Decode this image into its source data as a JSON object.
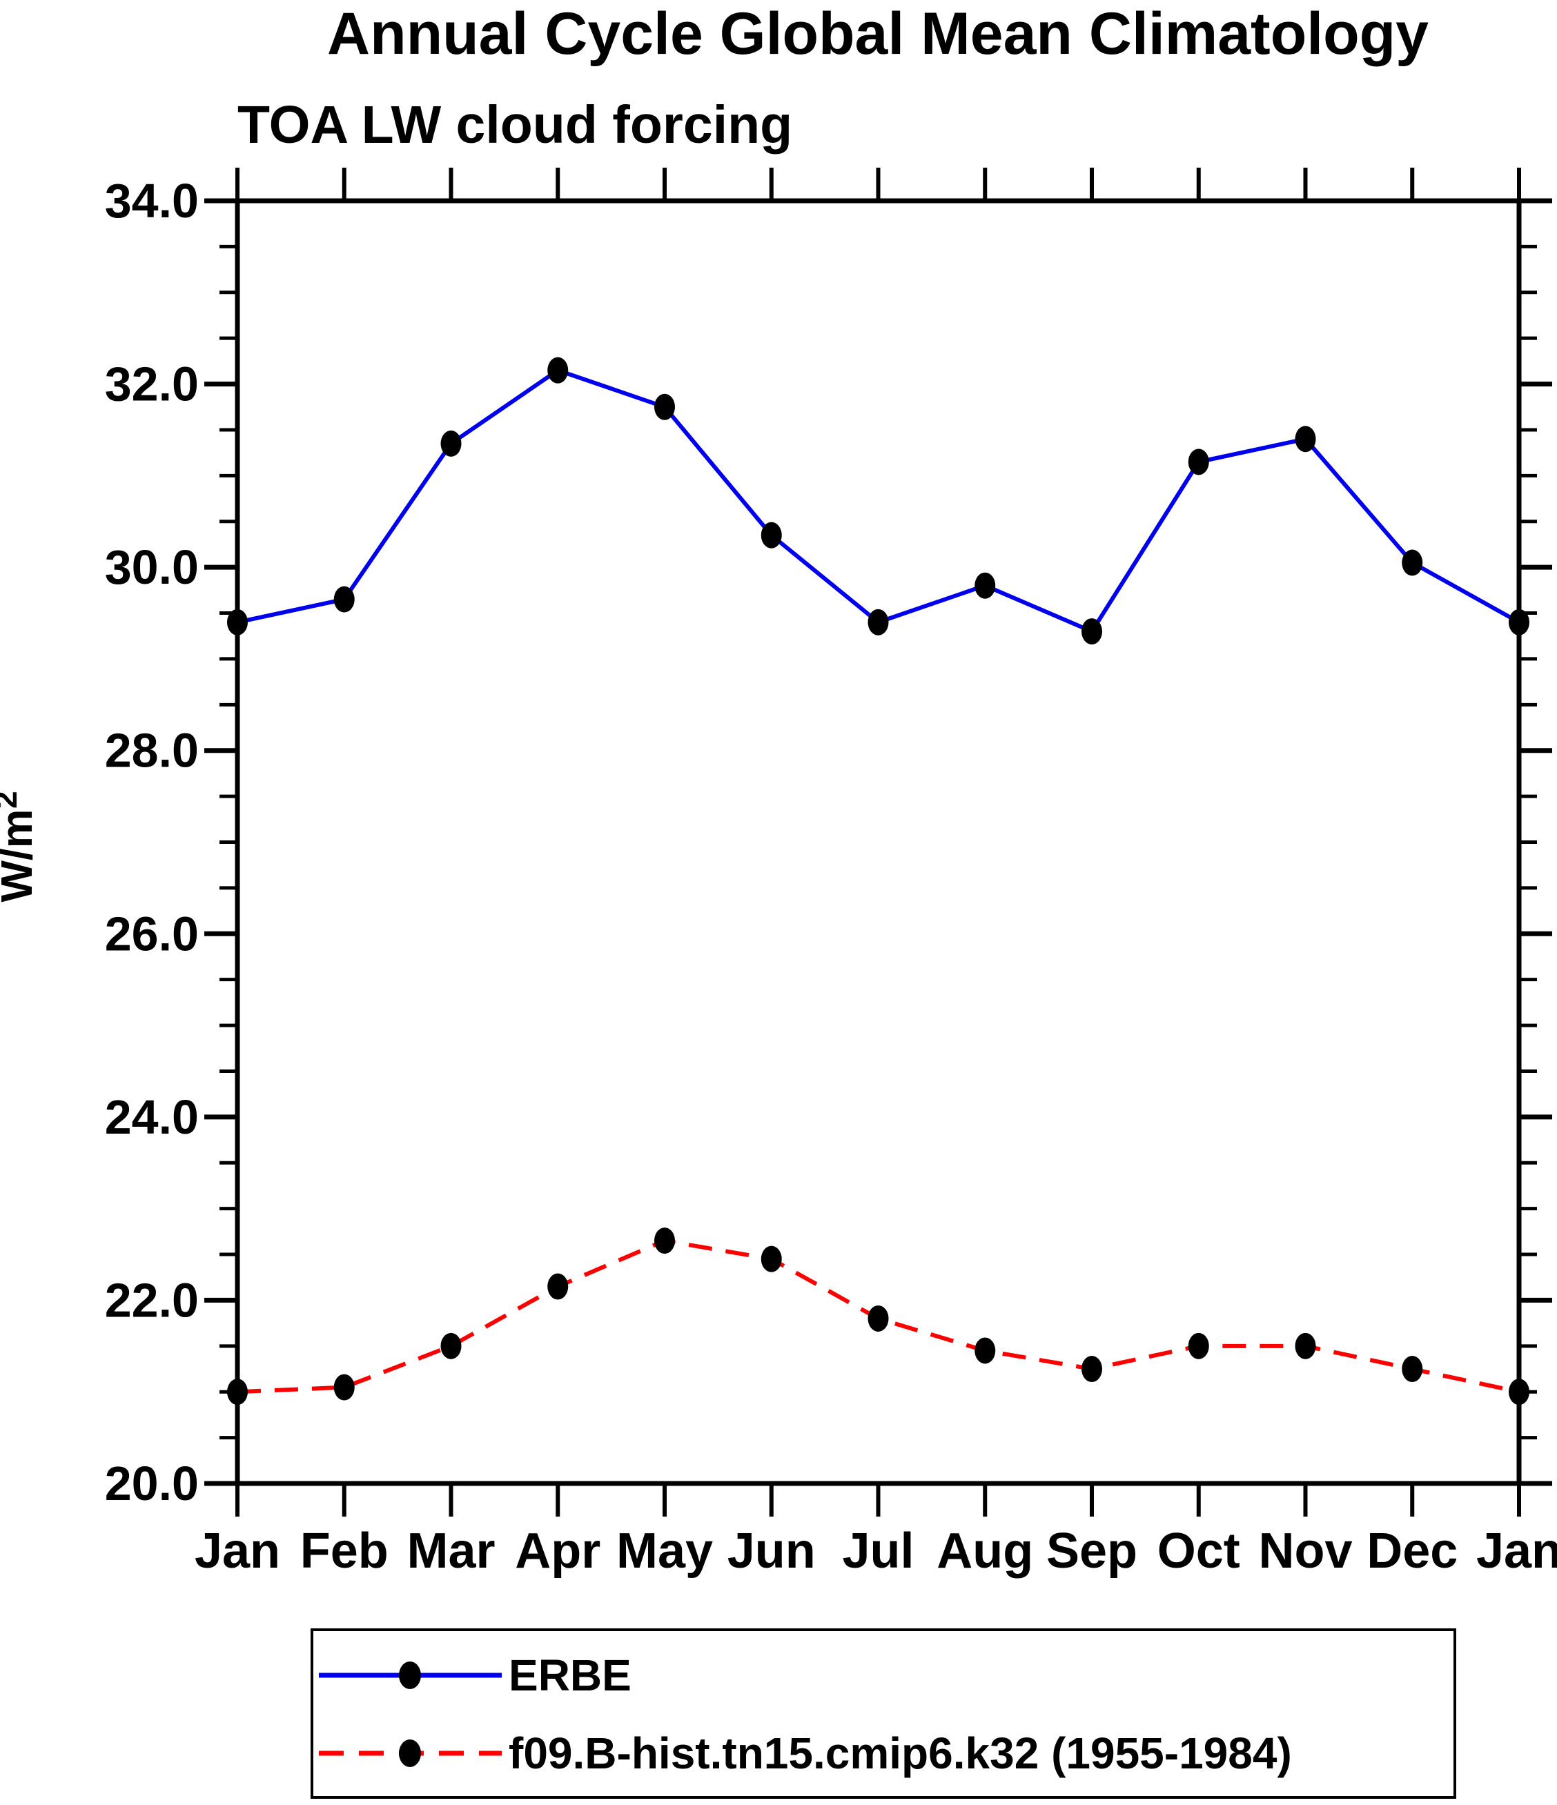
{
  "title": "Annual Cycle Global Mean Climatology",
  "subtitle": "TOA LW cloud forcing",
  "ylabel": {
    "base": "W/m",
    "exponent": "2"
  },
  "colors": {
    "axis": "#000000",
    "marker": "#000000",
    "series1": "#0000EE",
    "series2": "#FF0000"
  },
  "chart_data": {
    "type": "line",
    "title": "Annual Cycle Global Mean Climatology",
    "subtitle": "TOA LW cloud forcing",
    "xlabel": "",
    "ylabel": "W/m^2",
    "x_categories": [
      "Jan",
      "Feb",
      "Mar",
      "Apr",
      "May",
      "Jun",
      "Jul",
      "Aug",
      "Sep",
      "Oct",
      "Nov",
      "Dec",
      "Jan"
    ],
    "ylim": [
      20.0,
      34.0
    ],
    "ytick_major_interval": 2.0,
    "ytick_minor_interval": 0.5,
    "ytick_labels": [
      "34.0",
      "32.0",
      "30.0",
      "28.0",
      "26.0",
      "24.0",
      "22.0",
      "20.0"
    ],
    "grid": false,
    "legend_position": "bottom",
    "series": [
      {
        "name": "ERBE",
        "color": "#0000EE",
        "style": "solid",
        "marker": "ellipse",
        "marker_color": "#000000",
        "values": [
          29.4,
          29.65,
          31.35,
          32.15,
          31.75,
          30.35,
          29.4,
          29.8,
          29.3,
          31.15,
          31.4,
          30.05,
          29.4
        ]
      },
      {
        "name": "f09.B-hist.tn15.cmip6.k32 (1955-1984)",
        "color": "#FF0000",
        "style": "dashed",
        "marker": "ellipse",
        "marker_color": "#000000",
        "values": [
          21.0,
          21.05,
          21.5,
          22.15,
          22.65,
          22.45,
          21.8,
          21.45,
          21.25,
          21.5,
          21.5,
          21.25,
          21.0
        ]
      }
    ]
  }
}
